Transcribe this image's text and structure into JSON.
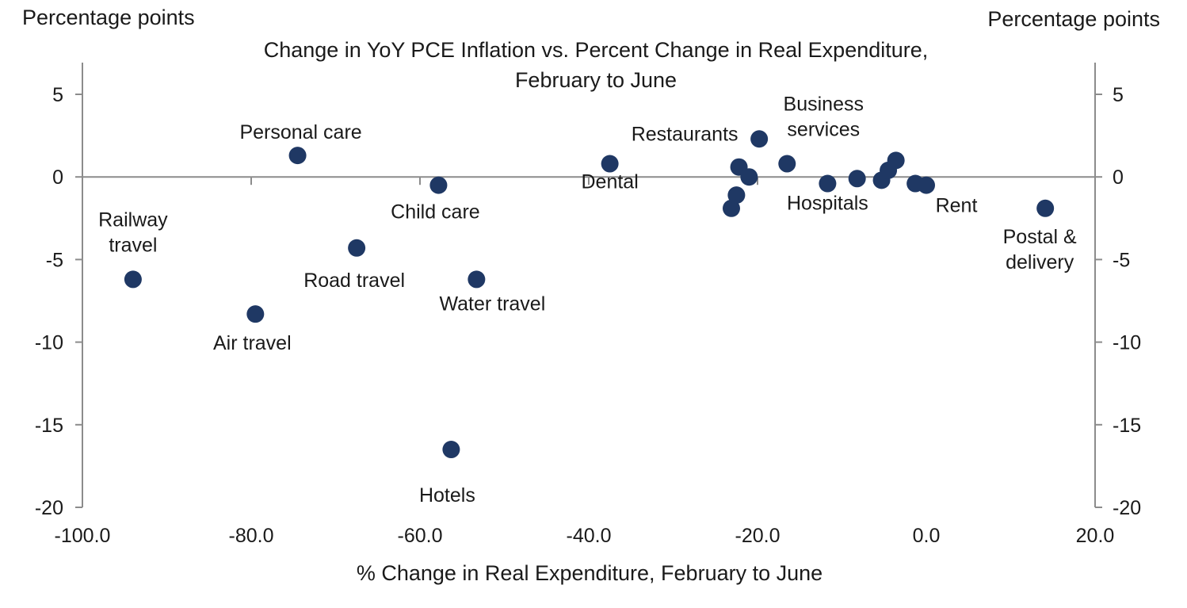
{
  "chart_data": {
    "type": "scatter",
    "title": "Change in YoY PCE Inflation vs. Percent Change in Real Expenditure,",
    "subtitle": "February to June",
    "xlabel": "% Change in Real Expenditure, February to June",
    "ylabel_left": "Percentage points",
    "ylabel_right": "Percentage points",
    "xlim": [
      -100,
      20
    ],
    "ylim": [
      -20,
      5
    ],
    "xticks": [
      "-100.0",
      "-80.0",
      "-60.0",
      "-40.0",
      "-20.0",
      "0.0",
      "20.0"
    ],
    "xtick_values": [
      -100,
      -80,
      -60,
      -40,
      -20,
      0,
      20
    ],
    "yticks": [
      "5",
      "0",
      "-5",
      "-10",
      "-15",
      "-20"
    ],
    "ytick_values": [
      5,
      0,
      -5,
      -10,
      -15,
      -20
    ],
    "marker_color": "#1f3864",
    "grid": false,
    "points": [
      {
        "x": -94.0,
        "y": -6.2,
        "label": "Railway travel"
      },
      {
        "x": -79.5,
        "y": -8.3,
        "label": "Air travel"
      },
      {
        "x": -74.5,
        "y": 1.3,
        "label": "Personal care"
      },
      {
        "x": -67.5,
        "y": -4.3,
        "label": "Road travel"
      },
      {
        "x": -57.8,
        "y": -0.5,
        "label": "Child care"
      },
      {
        "x": -56.3,
        "y": -16.5,
        "label": "Hotels"
      },
      {
        "x": -53.3,
        "y": -6.2,
        "label": "Water travel"
      },
      {
        "x": -37.5,
        "y": 0.8,
        "label": "Dental"
      },
      {
        "x": -23.1,
        "y": -1.9,
        "label": ""
      },
      {
        "x": -22.5,
        "y": -1.1,
        "label": ""
      },
      {
        "x": -22.2,
        "y": 0.6,
        "label": ""
      },
      {
        "x": -21.0,
        "y": 0.0,
        "label": ""
      },
      {
        "x": -19.8,
        "y": 2.3,
        "label": "Restaurants"
      },
      {
        "x": -16.5,
        "y": 0.8,
        "label": "Business services"
      },
      {
        "x": -11.7,
        "y": -0.4,
        "label": "Hospitals"
      },
      {
        "x": -8.2,
        "y": -0.1,
        "label": ""
      },
      {
        "x": -5.3,
        "y": -0.2,
        "label": ""
      },
      {
        "x": -4.5,
        "y": 0.4,
        "label": ""
      },
      {
        "x": -3.6,
        "y": 1.0,
        "label": ""
      },
      {
        "x": -1.3,
        "y": -0.4,
        "label": ""
      },
      {
        "x": 0.0,
        "y": -0.5,
        "label": "Rent"
      },
      {
        "x": 14.1,
        "y": -1.9,
        "label": "Postal & delivery"
      }
    ]
  }
}
